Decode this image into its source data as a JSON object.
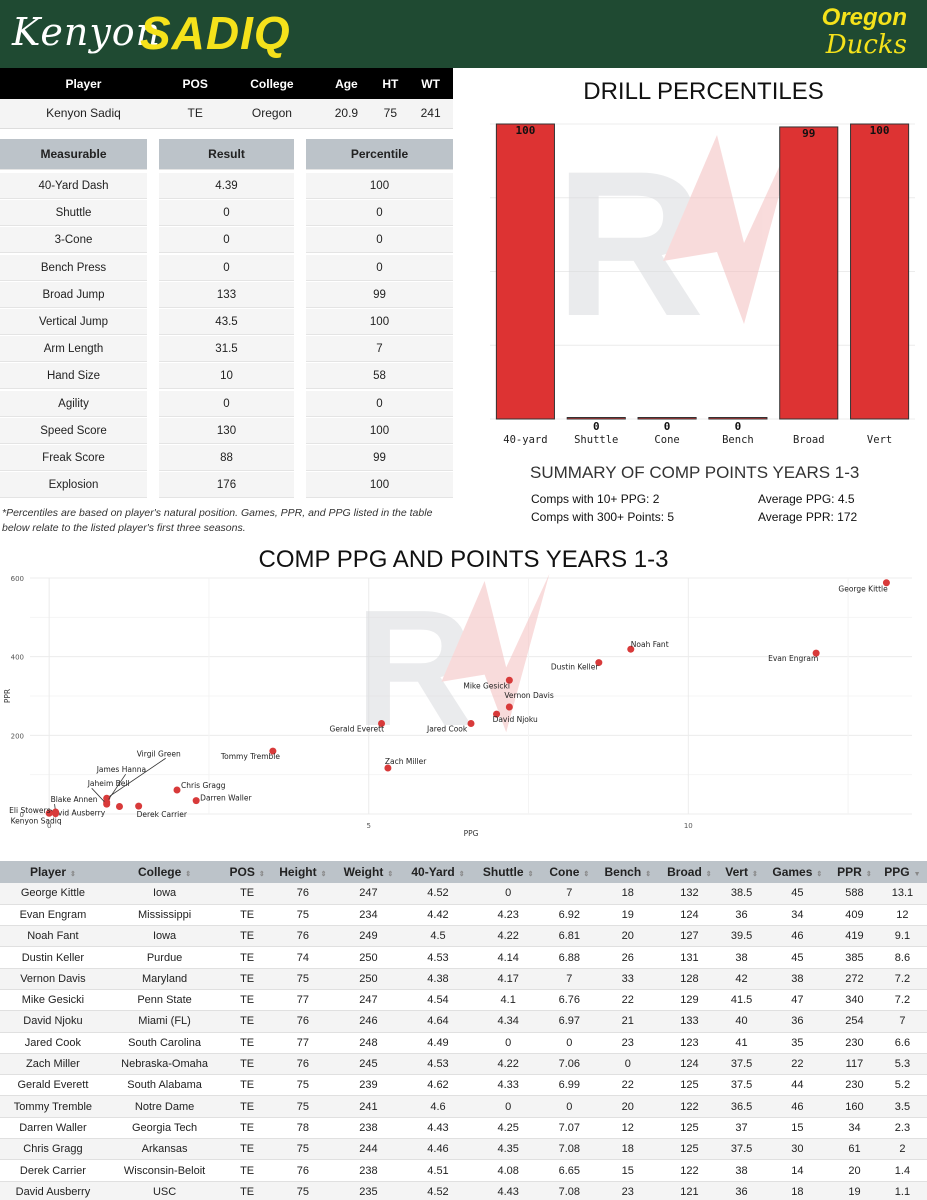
{
  "header": {
    "first_name": "Kenyon",
    "last_name": "SADIQ",
    "team_line1": "Oregon",
    "team_line2": "Ducks",
    "bg_color": "#1f4a32",
    "accent_color": "#f5e21b"
  },
  "player_table": {
    "headers": [
      "Player",
      "POS",
      "College",
      "Age",
      "HT",
      "WT"
    ],
    "row": [
      "Kenyon Sadiq",
      "TE",
      "Oregon",
      "20.9",
      "75",
      "241"
    ]
  },
  "measurables": {
    "headers": [
      "Measurable",
      "Result",
      "Percentile"
    ],
    "rows": [
      [
        "40-Yard Dash",
        "4.39",
        "100"
      ],
      [
        "Shuttle",
        "0",
        "0"
      ],
      [
        "3-Cone",
        "0",
        "0"
      ],
      [
        "Bench Press",
        "0",
        "0"
      ],
      [
        "Broad Jump",
        "133",
        "99"
      ],
      [
        "Vertical Jump",
        "43.5",
        "100"
      ],
      [
        "Arm Length",
        "31.5",
        "7"
      ],
      [
        "Hand Size",
        "10",
        "58"
      ],
      [
        "Agility",
        "0",
        "0"
      ],
      [
        "Speed Score",
        "130",
        "100"
      ],
      [
        "Freak Score",
        "88",
        "99"
      ],
      [
        "Explosion",
        "176",
        "100"
      ]
    ]
  },
  "footnote": "*Percentiles are based on player's natural position. Games, PPR, and PPG listed in the table below relate to the listed player's first three seasons.",
  "summary": {
    "title": "SUMMARY OF COMP POINTS YEARS 1-3",
    "comps_10_ppg": "Comps with 10+ PPG: 2",
    "comps_300_pts": "Comps with 300+ Points: 5",
    "avg_ppg": "Average PPG: 4.5",
    "avg_ppr": "Average PPR: 172"
  },
  "chart_data": [
    {
      "type": "bar",
      "title": "DRILL PERCENTILES",
      "categories": [
        "40-yard",
        "Shuttle",
        "Cone",
        "Bench",
        "Broad",
        "Vert"
      ],
      "values": [
        100,
        0,
        0,
        0,
        99,
        100
      ],
      "ylim": [
        0,
        100
      ],
      "bar_color": "#dd3333",
      "grid": true
    },
    {
      "type": "scatter",
      "title": "COMP PPG AND POINTS YEARS 1-3",
      "xlabel": "PPG",
      "ylabel": "PPR",
      "xlim": [
        -0.3,
        13.5
      ],
      "ylim": [
        0,
        600
      ],
      "xticks": [
        0,
        5,
        10
      ],
      "yticks": [
        0,
        200,
        400,
        600
      ],
      "point_color": "#d83a3a",
      "points": [
        {
          "label": "George Kittle",
          "x": 13.1,
          "y": 588
        },
        {
          "label": "Evan Engram",
          "x": 12,
          "y": 409
        },
        {
          "label": "Noah Fant",
          "x": 9.1,
          "y": 419
        },
        {
          "label": "Dustin Keller",
          "x": 8.6,
          "y": 385
        },
        {
          "label": "Vernon Davis",
          "x": 7.2,
          "y": 272
        },
        {
          "label": "Mike Gesicki",
          "x": 7.2,
          "y": 340
        },
        {
          "label": "David Njoku",
          "x": 7,
          "y": 254
        },
        {
          "label": "Jared Cook",
          "x": 6.6,
          "y": 230
        },
        {
          "label": "Zach Miller",
          "x": 5.3,
          "y": 117
        },
        {
          "label": "Gerald Everett",
          "x": 5.2,
          "y": 230
        },
        {
          "label": "Tommy Tremble",
          "x": 3.5,
          "y": 160
        },
        {
          "label": "Darren Waller",
          "x": 2.3,
          "y": 34
        },
        {
          "label": "Chris Gragg",
          "x": 2,
          "y": 61
        },
        {
          "label": "Derek Carrier",
          "x": 1.4,
          "y": 20
        },
        {
          "label": "David Ausberry",
          "x": 1.1,
          "y": 19
        },
        {
          "label": "Virgil Green",
          "x": 0.9,
          "y": 40
        },
        {
          "label": "James Hanna",
          "x": 0.9,
          "y": 30
        },
        {
          "label": "Jaheim Bell",
          "x": 0.9,
          "y": 25
        },
        {
          "label": "Blake Annen",
          "x": 0.1,
          "y": 5
        },
        {
          "label": "Eli Stowers",
          "x": 0,
          "y": 2
        },
        {
          "label": "Kenyon Sadiq",
          "x": 0.1,
          "y": 1
        }
      ]
    }
  ],
  "comps_table": {
    "headers": [
      "Player",
      "College",
      "POS",
      "Height",
      "Weight",
      "40-Yard",
      "Shuttle",
      "Cone",
      "Bench",
      "Broad",
      "Vert",
      "Games",
      "PPR",
      "PPG"
    ],
    "rows": [
      [
        "George Kittle",
        "Iowa",
        "TE",
        "76",
        "247",
        "4.52",
        "0",
        "7",
        "18",
        "132",
        "38.5",
        "45",
        "588",
        "13.1"
      ],
      [
        "Evan Engram",
        "Mississippi",
        "TE",
        "75",
        "234",
        "4.42",
        "4.23",
        "6.92",
        "19",
        "124",
        "36",
        "34",
        "409",
        "12"
      ],
      [
        "Noah Fant",
        "Iowa",
        "TE",
        "76",
        "249",
        "4.5",
        "4.22",
        "6.81",
        "20",
        "127",
        "39.5",
        "46",
        "419",
        "9.1"
      ],
      [
        "Dustin Keller",
        "Purdue",
        "TE",
        "74",
        "250",
        "4.53",
        "4.14",
        "6.88",
        "26",
        "131",
        "38",
        "45",
        "385",
        "8.6"
      ],
      [
        "Vernon Davis",
        "Maryland",
        "TE",
        "75",
        "250",
        "4.38",
        "4.17",
        "7",
        "33",
        "128",
        "42",
        "38",
        "272",
        "7.2"
      ],
      [
        "Mike Gesicki",
        "Penn State",
        "TE",
        "77",
        "247",
        "4.54",
        "4.1",
        "6.76",
        "22",
        "129",
        "41.5",
        "47",
        "340",
        "7.2"
      ],
      [
        "David Njoku",
        "Miami (FL)",
        "TE",
        "76",
        "246",
        "4.64",
        "4.34",
        "6.97",
        "21",
        "133",
        "40",
        "36",
        "254",
        "7"
      ],
      [
        "Jared Cook",
        "South Carolina",
        "TE",
        "77",
        "248",
        "4.49",
        "0",
        "0",
        "23",
        "123",
        "41",
        "35",
        "230",
        "6.6"
      ],
      [
        "Zach Miller",
        "Nebraska-Omaha",
        "TE",
        "76",
        "245",
        "4.53",
        "4.22",
        "7.06",
        "0",
        "124",
        "37.5",
        "22",
        "117",
        "5.3"
      ],
      [
        "Gerald Everett",
        "South Alabama",
        "TE",
        "75",
        "239",
        "4.62",
        "4.33",
        "6.99",
        "22",
        "125",
        "37.5",
        "44",
        "230",
        "5.2"
      ],
      [
        "Tommy Tremble",
        "Notre Dame",
        "TE",
        "75",
        "241",
        "4.6",
        "0",
        "0",
        "20",
        "122",
        "36.5",
        "46",
        "160",
        "3.5"
      ],
      [
        "Darren Waller",
        "Georgia Tech",
        "TE",
        "78",
        "238",
        "4.43",
        "4.25",
        "7.07",
        "12",
        "125",
        "37",
        "15",
        "34",
        "2.3"
      ],
      [
        "Chris Gragg",
        "Arkansas",
        "TE",
        "75",
        "244",
        "4.46",
        "4.35",
        "7.08",
        "18",
        "125",
        "37.5",
        "30",
        "61",
        "2"
      ],
      [
        "Derek Carrier",
        "Wisconsin-Beloit",
        "TE",
        "76",
        "238",
        "4.51",
        "4.08",
        "6.65",
        "15",
        "122",
        "38",
        "14",
        "20",
        "1.4"
      ],
      [
        "David Ausberry",
        "USC",
        "TE",
        "75",
        "235",
        "4.52",
        "4.43",
        "7.08",
        "23",
        "121",
        "36",
        "18",
        "19",
        "1.1"
      ]
    ]
  }
}
